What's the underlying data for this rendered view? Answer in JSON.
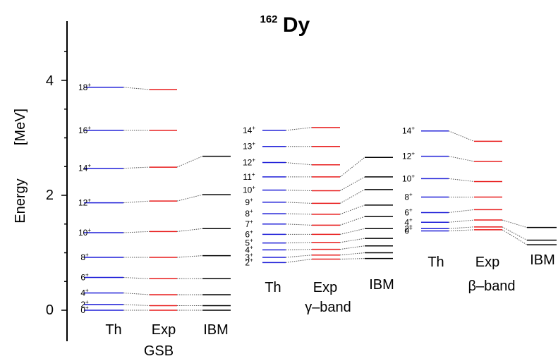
{
  "title": {
    "mass": "162",
    "element": "Dy"
  },
  "y_axis": {
    "label": "Energy",
    "unit": "[MeV]",
    "ticks": [
      "0",
      "2",
      "4"
    ]
  },
  "colors": {
    "th": "#1f1fd8",
    "exp": "#e81b1b",
    "ibm": "#000000",
    "connector": "#555555"
  },
  "chart_data": {
    "type": "level-scheme",
    "ylim": [
      0,
      5
    ],
    "groups": [
      {
        "name": "GSB",
        "columns": [
          "Th",
          "Exp",
          "IBM"
        ],
        "levels": [
          {
            "label": "0+",
            "th": 0.0,
            "exp": 0.0,
            "ibm": 0.0
          },
          {
            "label": "2+",
            "th": 0.1,
            "exp": 0.08,
            "ibm": 0.08
          },
          {
            "label": "4+",
            "th": 0.3,
            "exp": 0.27,
            "ibm": 0.27
          },
          {
            "label": "6+",
            "th": 0.57,
            "exp": 0.55,
            "ibm": 0.55
          },
          {
            "label": "8+",
            "th": 0.92,
            "exp": 0.92,
            "ibm": 0.95
          },
          {
            "label": "10+",
            "th": 1.35,
            "exp": 1.37,
            "ibm": 1.42
          },
          {
            "label": "12+",
            "th": 1.87,
            "exp": 1.9,
            "ibm": 2.01
          },
          {
            "label": "14+",
            "th": 2.47,
            "exp": 2.49,
            "ibm": 2.68
          },
          {
            "label": "16+",
            "th": 3.13,
            "exp": 3.13,
            "ibm": null
          },
          {
            "label": "18+",
            "th": 3.88,
            "exp": 3.84,
            "ibm": null
          }
        ]
      },
      {
        "name": "γ–band",
        "columns": [
          "Th",
          "Exp",
          "IBM"
        ],
        "levels": [
          {
            "label": "2+",
            "th": 0.83,
            "exp": 0.89,
            "ibm": 0.9
          },
          {
            "label": "3+",
            "th": 0.92,
            "exp": 0.96,
            "ibm": 1.0
          },
          {
            "label": "4+",
            "th": 1.05,
            "exp": 1.06,
            "ibm": 1.12
          },
          {
            "label": "5+",
            "th": 1.17,
            "exp": 1.18,
            "ibm": 1.25
          },
          {
            "label": "6+",
            "th": 1.32,
            "exp": 1.32,
            "ibm": 1.42
          },
          {
            "label": "7+",
            "th": 1.5,
            "exp": 1.48,
            "ibm": 1.63
          },
          {
            "label": "8+",
            "th": 1.68,
            "exp": 1.67,
            "ibm": 1.83
          },
          {
            "label": "9+",
            "th": 1.88,
            "exp": 1.86,
            "ibm": 2.1
          },
          {
            "label": "10+",
            "th": 2.09,
            "exp": 2.08,
            "ibm": 2.32
          },
          {
            "label": "11+",
            "th": 2.32,
            "exp": 2.32,
            "ibm": 2.66
          },
          {
            "label": "12+",
            "th": 2.57,
            "exp": 2.53,
            "ibm": null
          },
          {
            "label": "13+",
            "th": 2.85,
            "exp": 2.85,
            "ibm": null
          },
          {
            "label": "14+",
            "th": 3.13,
            "exp": 3.18,
            "ibm": null
          }
        ]
      },
      {
        "name": "β–band",
        "columns": [
          "Th",
          "Exp",
          "IBM"
        ],
        "levels": [
          {
            "label": "0+",
            "th": 1.38,
            "exp": 1.4,
            "ibm": 1.14
          },
          {
            "label": "2+",
            "th": 1.42,
            "exp": 1.45,
            "ibm": 1.22
          },
          {
            "label": "4+",
            "th": 1.53,
            "exp": 1.57,
            "ibm": 1.44
          },
          {
            "label": "6+",
            "th": 1.7,
            "exp": 1.75,
            "ibm": null
          },
          {
            "label": "8+",
            "th": 1.97,
            "exp": 1.97,
            "ibm": null
          },
          {
            "label": "10+",
            "th": 2.29,
            "exp": 2.24,
            "ibm": null
          },
          {
            "label": "12+",
            "th": 2.68,
            "exp": 2.59,
            "ibm": null
          },
          {
            "label": "14+",
            "th": 3.12,
            "exp": 2.94,
            "ibm": null
          }
        ]
      }
    ]
  }
}
